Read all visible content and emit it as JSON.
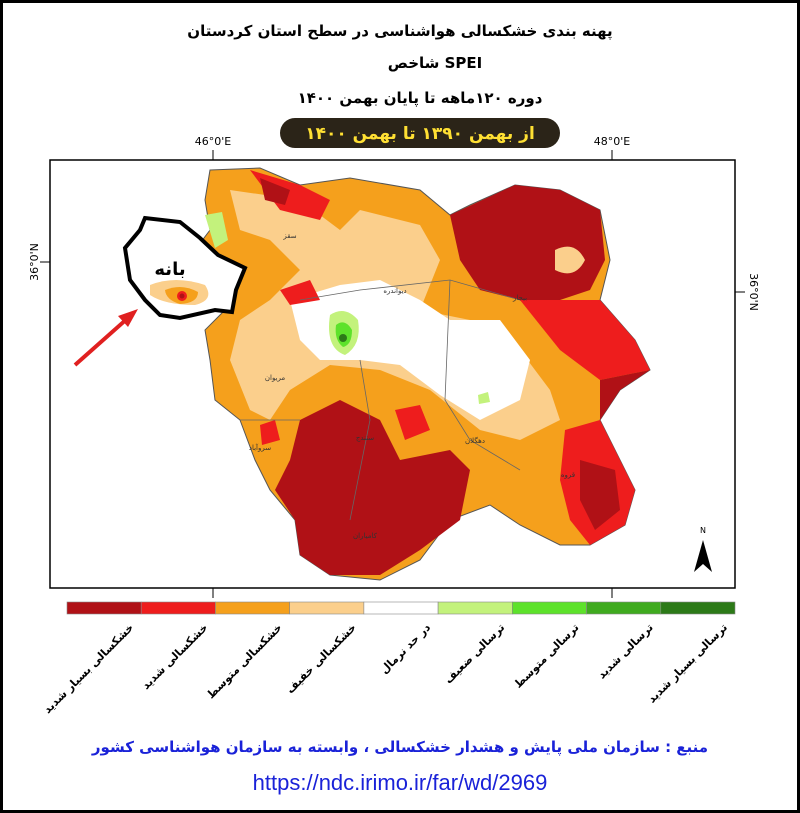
{
  "header": {
    "title": "پهنه بندی خشکسالی هواشناسی در سطح استان کردستان",
    "index": "شاخص  SPEI",
    "period": "دوره  ۱۲۰ماهه تا پایان بهمن ۱۴۰۰",
    "range": "از بهمن ۱۳۹۰   تا   بهمن ۱۴۰۰"
  },
  "map": {
    "lon_labels": [
      "46°0'E",
      "48°0'E"
    ],
    "lat_labels": [
      "36°0'N",
      "36°0'N"
    ],
    "cities": [
      "سقز",
      "دیواندره",
      "بیجار",
      "مریوان",
      "سنندج",
      "دهگلان",
      "قروه",
      "سروآباد",
      "کامیاران"
    ],
    "highlight": "بانه",
    "north": "N"
  },
  "legend": [
    {
      "label": "خشکسالی بسیار شدید",
      "color": "#b01116"
    },
    {
      "label": "خشکسالی شدید",
      "color": "#ee1d1d"
    },
    {
      "label": "خشکسالی متوسط",
      "color": "#f5a01c"
    },
    {
      "label": "خشکسالی خفیف",
      "color": "#fbcf8c"
    },
    {
      "label": "در حد نرمال",
      "color": "#ffffff"
    },
    {
      "label": "ترسالی ضعیف",
      "color": "#c3f27c"
    },
    {
      "label": "ترسالی متوسط",
      "color": "#5de22b"
    },
    {
      "label": "ترسالی شدید",
      "color": "#3faa1f"
    },
    {
      "label": "ترسالی بسیار شدید",
      "color": "#2c7a18"
    }
  ],
  "footer": {
    "source": "منبع : سازمان ملی پایش و هشدار خشکسالی ، وابسته به سازمان هواشناسی کشور",
    "url": "https://ndc.irimo.ir/far/wd/2969"
  }
}
